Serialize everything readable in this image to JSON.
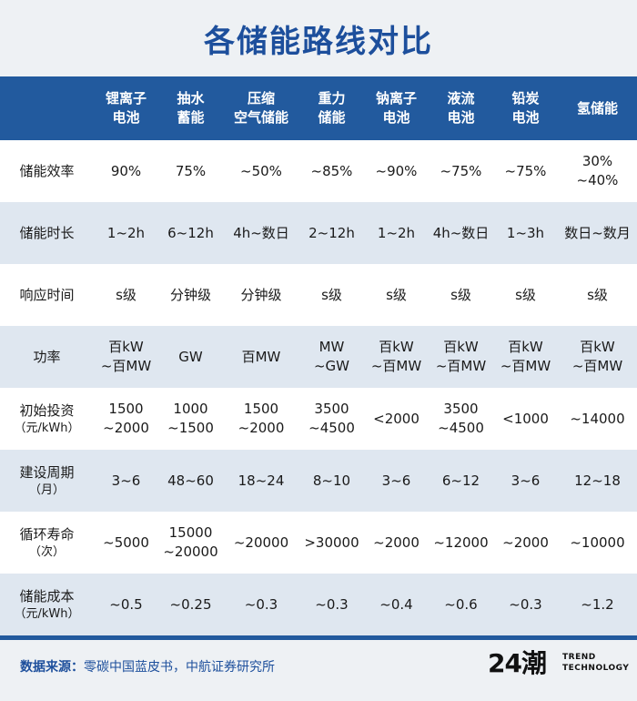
{
  "title": "各储能路线对比",
  "header": [
    "锂离子\n电池",
    "抽水\n蓄能",
    "压缩\n空气储能",
    "重力\n储能",
    "钠离子\n电池",
    "液流\n电池",
    "铅炭\n电池",
    "氢储能"
  ],
  "rows": [
    {
      "label": "储能效率",
      "unit": "",
      "cells": [
        "90%",
        "75%",
        "~50%",
        "~85%",
        "~90%",
        "~75%",
        "~75%",
        "30%\n~40%"
      ]
    },
    {
      "label": "储能时长",
      "unit": "",
      "cells": [
        "1~2h",
        "6~12h",
        "4h~数日",
        "2~12h",
        "1~2h",
        "4h~数日",
        "1~3h",
        "数日~数月"
      ]
    },
    {
      "label": "响应时间",
      "unit": "",
      "cells": [
        "s级",
        "分钟级",
        "分钟级",
        "s级",
        "s级",
        "s级",
        "s级",
        "s级"
      ]
    },
    {
      "label": "功率",
      "unit": "",
      "cells": [
        "百kW\n~百MW",
        "GW",
        "百MW",
        "MW\n~GW",
        "百kW\n~百MW",
        "百kW\n~百MW",
        "百kW\n~百MW",
        "百kW\n~百MW"
      ]
    },
    {
      "label": "初始投资",
      "unit": "（元/kWh）",
      "cells": [
        "1500\n~2000",
        "1000\n~1500",
        "1500\n~2000",
        "3500\n~4500",
        "<2000",
        "3500\n~4500",
        "<1000",
        "~14000"
      ]
    },
    {
      "label": "建设周期",
      "unit": "（月）",
      "cells": [
        "3~6",
        "48~60",
        "18~24",
        "8~10",
        "3~6",
        "6~12",
        "3~6",
        "12~18"
      ]
    },
    {
      "label": "循环寿命",
      "unit": "（次）",
      "cells": [
        "~5000",
        "15000\n~20000",
        "~20000",
        ">30000",
        "~2000",
        "~12000",
        "~2000",
        "~10000"
      ]
    },
    {
      "label": "储能成本",
      "unit": "（元/kWh）",
      "cells": [
        "~0.5",
        "~0.25",
        "~0.3",
        "~0.3",
        "~0.4",
        "~0.6",
        "~0.3",
        "~1.2"
      ]
    }
  ],
  "footer": {
    "source_label": "数据来源：",
    "source_text": "零碳中国蓝皮书，中航证券研究所",
    "logo_mark": "24潮",
    "logo_line1": "TREND",
    "logo_line2": "TECHNOLOGY"
  },
  "colors": {
    "header_bg": "#225a9e",
    "title": "#1d4f9c",
    "row_alt": "#dfe7f0"
  }
}
